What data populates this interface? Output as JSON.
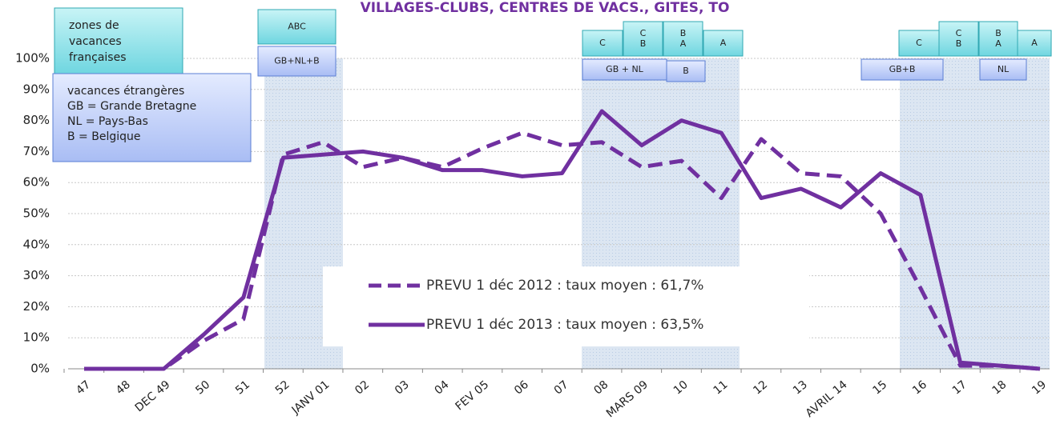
{
  "chart_data": {
    "type": "line",
    "title": "VILLAGES-CLUBS, CENTRES DE VACS., GITES, TO",
    "categories": [
      "47",
      "48",
      "DEC 49",
      "50",
      "51",
      "52",
      "JANV 01",
      "02",
      "03",
      "04",
      "FEV 05",
      "06",
      "07",
      "08",
      "MARS 09",
      "10",
      "11",
      "12",
      "13",
      "AVRIL 14",
      "15",
      "16",
      "17",
      "18",
      "19"
    ],
    "series": [
      {
        "name": "PREVU 1 déc 2012 : taux moyen : 61,7%",
        "color": "#7030a0",
        "dash": true,
        "values": [
          0,
          0,
          0,
          9,
          16,
          69,
          73,
          65,
          68,
          65,
          71,
          76,
          72,
          73,
          65,
          67,
          55,
          74,
          63,
          62,
          50,
          26,
          1,
          1,
          0
        ]
      },
      {
        "name": "PREVU 1 déc 2013 : taux moyen : 63,5%",
        "color": "#7030a0",
        "dash": false,
        "values": [
          0,
          0,
          0,
          11,
          23,
          68,
          69,
          70,
          68,
          64,
          64,
          62,
          63,
          83,
          72,
          80,
          76,
          55,
          58,
          52,
          63,
          56,
          2,
          1,
          0
        ]
      }
    ],
    "ylim": [
      0,
      100
    ],
    "yticks": [
      {
        "value": 0,
        "label": "0%"
      },
      {
        "value": 10,
        "label": "10%"
      },
      {
        "value": 20,
        "label": "20%"
      },
      {
        "value": 30,
        "label": "30%"
      },
      {
        "value": 40,
        "label": "40%"
      },
      {
        "value": 50,
        "label": "50%"
      },
      {
        "value": 60,
        "label": "60%"
      },
      {
        "value": 70,
        "label": "70%"
      },
      {
        "value": 80,
        "label": "80%"
      },
      {
        "value": 90,
        "label": "90%"
      },
      {
        "value": 100,
        "label": "100%"
      }
    ],
    "grid": true,
    "annotations": [
      {
        "lines": [
          "zones de",
          "vacances",
          "françaises"
        ]
      },
      {
        "lines": [
          "vacances étrangères",
          "GB = Grande Bretagne",
          "NL = Pays-Bas",
          "B = Belgique"
        ]
      },
      {
        "lines": [
          "ABC"
        ]
      },
      {
        "lines": [
          "GB+NL+B"
        ]
      },
      {
        "lines": [
          "C"
        ]
      },
      {
        "lines": [
          "C",
          "B"
        ]
      },
      {
        "lines": [
          "B",
          "A"
        ]
      },
      {
        "lines": [
          "A"
        ]
      },
      {
        "lines": [
          "GB + NL"
        ]
      },
      {
        "lines": [
          "B"
        ]
      },
      {
        "lines": [
          "C"
        ]
      },
      {
        "lines": [
          "C",
          "B"
        ]
      },
      {
        "lines": [
          "B",
          "A"
        ]
      },
      {
        "lines": [
          "A"
        ]
      },
      {
        "lines": [
          "GB+B"
        ]
      },
      {
        "lines": [
          "NL"
        ]
      }
    ]
  }
}
